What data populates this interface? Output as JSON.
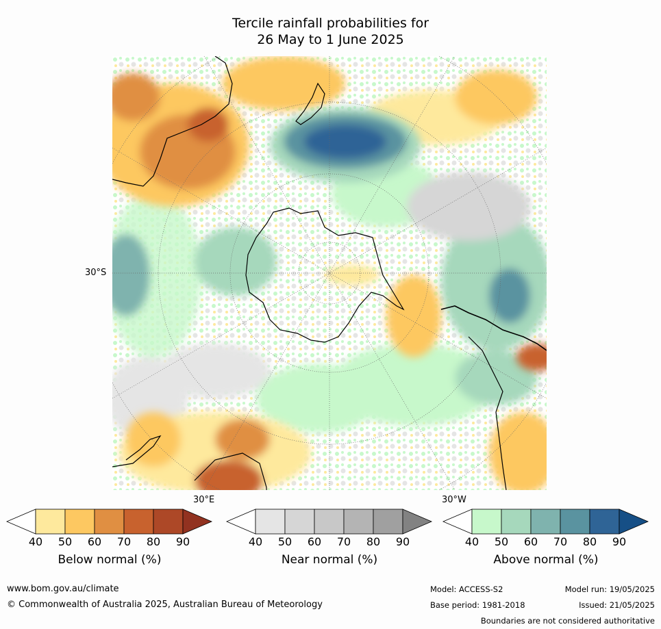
{
  "title_line1": "Tercile rainfall probabilities for",
  "title_line2": "26 May to 1 June 2025",
  "map_labels": {
    "lat": "30°S",
    "lon_left": "30°E",
    "lon_right": "30°W"
  },
  "legends": [
    {
      "caption": "Below normal (%)",
      "ticks": [
        "40",
        "50",
        "60",
        "70",
        "80",
        "90"
      ],
      "colors": [
        "#ffffff",
        "#fee99d",
        "#fdc861",
        "#e08f42",
        "#c8622e",
        "#ad4827",
        "#923220"
      ]
    },
    {
      "caption": "Near normal (%)",
      "ticks": [
        "40",
        "50",
        "60",
        "70",
        "80",
        "90"
      ],
      "colors": [
        "#ffffff",
        "#e5e5e5",
        "#d6d6d6",
        "#c8c8c8",
        "#b4b4b4",
        "#a0a0a0",
        "#828282"
      ]
    },
    {
      "caption": "Above normal (%)",
      "ticks": [
        "40",
        "50",
        "60",
        "70",
        "80",
        "90"
      ],
      "colors": [
        "#ffffff",
        "#c7f8cb",
        "#a6d8bc",
        "#7fb3ae",
        "#5a93a0",
        "#2f6496",
        "#164f86"
      ]
    }
  ],
  "footer": {
    "url": "www.bom.gov.au/climate",
    "copyright": "© Commonwealth of Australia 2025, Australian Bureau of Meteorology",
    "model": "Model: ACCESS-S2",
    "base_period": "Base period: 1981-2018",
    "model_run": "Model run: 19/05/2025",
    "issued": "Issued: 21/05/2025",
    "disclaimer": "Boundaries are not considered authoritative"
  }
}
